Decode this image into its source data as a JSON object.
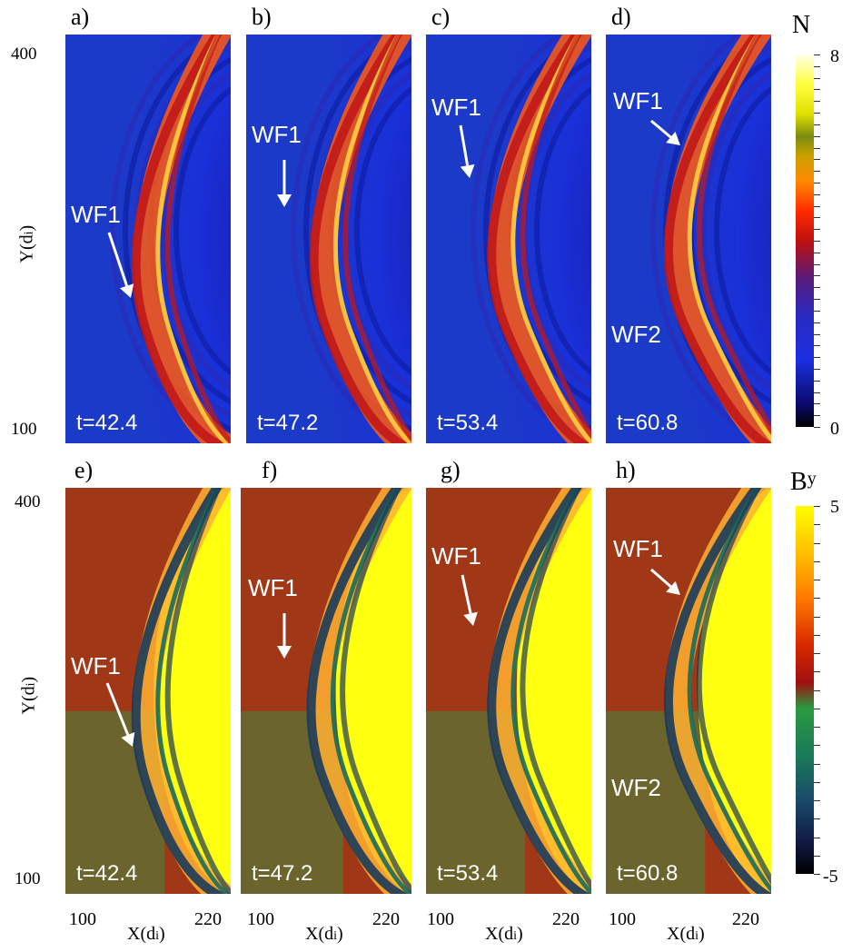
{
  "panels_top": [
    {
      "label": "a)",
      "t": "t=42.4",
      "wf": [
        "WF1"
      ]
    },
    {
      "label": "b)",
      "t": "t=47.2",
      "wf": [
        "WF1"
      ]
    },
    {
      "label": "c)",
      "t": "t=53.4",
      "wf": [
        "WF1"
      ]
    },
    {
      "label": "d)",
      "t": "t=60.8",
      "wf": [
        "WF1",
        "WF2"
      ]
    }
  ],
  "panels_bottom": [
    {
      "label": "e)",
      "t": "t=42.4",
      "wf": [
        "WF1"
      ]
    },
    {
      "label": "f)",
      "t": "t=47.2",
      "wf": [
        "WF1"
      ]
    },
    {
      "label": "g)",
      "t": "t=53.4",
      "wf": [
        "WF1"
      ]
    },
    {
      "label": "h)",
      "t": "t=60.8",
      "wf": [
        "WF1",
        "WF2"
      ]
    }
  ],
  "axes": {
    "y_label": "Y(d",
    "y_label_sub": "i",
    "y_label_close": ")",
    "y_ticks": [
      "400",
      "100"
    ],
    "x_label": "X(d",
    "x_label_sub": "i",
    "x_label_close": ")",
    "x_ticks": [
      "100",
      "220"
    ]
  },
  "colorbar_top": {
    "title": "N",
    "max": "8",
    "min": "0"
  },
  "colorbar_bottom": {
    "title": "B",
    "title_sub": "y",
    "max": "5",
    "min": "-5"
  }
}
